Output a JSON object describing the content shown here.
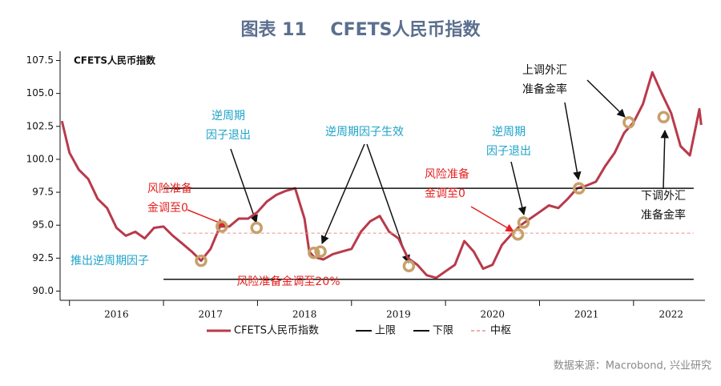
{
  "chart_data": {
    "type": "line",
    "title": "图表 11　 CFETS人民币指数",
    "inner_label": "CFETS人民币指数",
    "source": "数据来源：Macrobond, 兴业研究",
    "ylim": [
      89.3,
      108.2
    ],
    "yticks": [
      {
        "value": 90,
        "label": "90.0"
      },
      {
        "value": 92.5,
        "label": "92.5"
      },
      {
        "value": 95,
        "label": "95.0"
      },
      {
        "value": 97.5,
        "label": "97.5"
      },
      {
        "value": 100,
        "label": "100.0"
      },
      {
        "value": 102.5,
        "label": "102.5"
      },
      {
        "value": 105,
        "label": "105.0"
      },
      {
        "value": 107.5,
        "label": "107.5"
      }
    ],
    "xlim": [
      2015.9,
      2022.76
    ],
    "xticks": [
      {
        "value": 2016.5,
        "label": "2016"
      },
      {
        "value": 2017.5,
        "label": "2017"
      },
      {
        "value": 2018.5,
        "label": "2018"
      },
      {
        "value": 2019.5,
        "label": "2019"
      },
      {
        "value": 2020.5,
        "label": "2020"
      },
      {
        "value": 2021.5,
        "label": "2021"
      },
      {
        "value": 2022.4,
        "label": "2022"
      }
    ],
    "xtick_marks": [
      2016,
      2017,
      2018,
      2019,
      2020,
      2021,
      2022
    ],
    "series": [
      {
        "name": "CFETS人民币指数",
        "color": "#b83a4b",
        "style": "solid",
        "width": 3,
        "x": [
          2015.92,
          2016.0,
          2016.1,
          2016.2,
          2016.3,
          2016.4,
          2016.5,
          2016.6,
          2016.7,
          2016.8,
          2016.9,
          2017.0,
          2017.1,
          2017.2,
          2017.3,
          2017.4,
          2017.5,
          2017.6,
          2017.7,
          2017.8,
          2017.9,
          2018.0,
          2018.1,
          2018.2,
          2018.3,
          2018.4,
          2018.5,
          2018.55,
          2018.6,
          2018.7,
          2018.8,
          2018.9,
          2019.0,
          2019.1,
          2019.2,
          2019.3,
          2019.4,
          2019.5,
          2019.6,
          2019.7,
          2019.8,
          2019.9,
          2020.0,
          2020.1,
          2020.2,
          2020.3,
          2020.4,
          2020.5,
          2020.6,
          2020.7,
          2020.8,
          2020.9,
          2021.0,
          2021.1,
          2021.2,
          2021.3,
          2021.4,
          2021.5,
          2021.6,
          2021.7,
          2021.8,
          2021.9,
          2022.0,
          2022.1,
          2022.2,
          2022.3,
          2022.4,
          2022.5,
          2022.6,
          2022.7,
          2022.72
        ],
        "values": [
          102.9,
          100.5,
          99.2,
          98.5,
          97.0,
          96.3,
          94.8,
          94.2,
          94.5,
          94.0,
          94.8,
          94.9,
          94.2,
          93.6,
          93.0,
          92.3,
          93.2,
          94.9,
          94.9,
          95.5,
          95.5,
          96.0,
          96.8,
          97.3,
          97.6,
          97.8,
          95.5,
          93.0,
          92.6,
          92.4,
          92.8,
          93.0,
          93.2,
          94.5,
          95.3,
          95.7,
          94.5,
          94.0,
          92.5,
          92.0,
          91.2,
          91.0,
          91.5,
          92.0,
          93.8,
          93.0,
          91.7,
          92.0,
          93.5,
          94.3,
          95.0,
          95.5,
          96.0,
          96.5,
          96.3,
          97.0,
          97.8,
          98.0,
          98.3,
          99.5,
          100.5,
          102.0,
          102.8,
          104.2,
          106.6,
          105.0,
          103.5,
          101.0,
          100.3,
          103.8,
          102.6
        ]
      },
      {
        "name": "上限",
        "color": "#111111",
        "style": "solid",
        "width": 1.5,
        "x": [
          2017.0,
          2022.64
        ],
        "values": [
          97.8,
          97.8
        ]
      },
      {
        "name": "下限",
        "color": "#111111",
        "style": "solid",
        "width": 1.5,
        "x": [
          2017.0,
          2022.64
        ],
        "values": [
          90.9,
          90.9
        ]
      },
      {
        "name": "中枢",
        "color": "#e8928e",
        "style": "dashed",
        "width": 1,
        "x": [
          2017.2,
          2022.64
        ],
        "values": [
          94.4,
          94.4
        ]
      }
    ],
    "highlights": {
      "color": "#c7a06a",
      "x": [
        2017.4,
        2017.62,
        2017.99,
        2018.6,
        2018.67,
        2019.61,
        2020.77,
        2020.83,
        2021.42,
        2021.95,
        2022.32
      ],
      "values": [
        92.3,
        94.9,
        94.8,
        92.9,
        93.0,
        91.9,
        94.3,
        95.2,
        97.8,
        102.8,
        103.2
      ]
    },
    "annotations": [
      {
        "lines": [
          "推出逆周期因子"
        ],
        "color": "#1ea3c8"
      },
      {
        "lines": [
          "风险准备",
          "金调至0"
        ],
        "color": "#e42222"
      },
      {
        "lines": [
          "逆周期",
          "因子退出"
        ],
        "color": "#1ea3c8"
      },
      {
        "lines": [
          "风险准备金调至20%"
        ],
        "color": "#e42222"
      },
      {
        "lines": [
          "逆周期因子生效"
        ],
        "color": "#1ea3c8"
      },
      {
        "lines": [
          "风险准备",
          "金调至0"
        ],
        "color": "#e42222"
      },
      {
        "lines": [
          "逆周期",
          "因子退出"
        ],
        "color": "#1ea3c8"
      },
      {
        "lines": [
          "上调外汇",
          "准备金率"
        ],
        "color": "#111111"
      },
      {
        "lines": [
          "下调外汇",
          "准备金率"
        ],
        "color": "#111111"
      }
    ]
  }
}
